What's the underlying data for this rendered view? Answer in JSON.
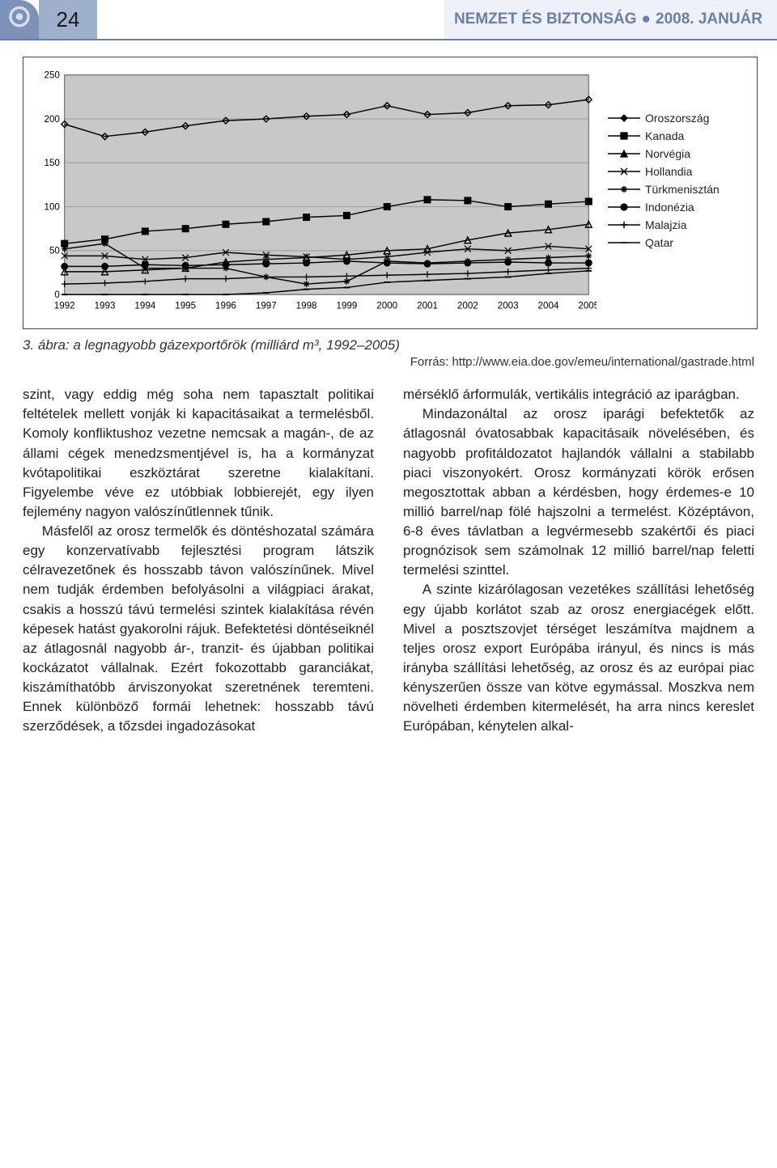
{
  "header": {
    "page_number": "24",
    "journal": "NEMZET ÉS BIZTONSÁG",
    "issue": "2008. JANUÁR",
    "bg_logo": "#7c92b8",
    "bg_page": "#9fb0cd",
    "bg_title": "#eef1f7",
    "fg_title": "#6a7fa5"
  },
  "chart": {
    "type": "line",
    "background_color": "#c8c8c8",
    "grid_color": "#9a9a9a",
    "axis_fontsize": 12,
    "ylim": [
      0,
      250
    ],
    "ytick_step": 50,
    "yticks": [
      0,
      50,
      100,
      150,
      200,
      250
    ],
    "years": [
      1992,
      1993,
      1994,
      1995,
      1996,
      1997,
      1998,
      1999,
      2000,
      2001,
      2002,
      2003,
      2004,
      2005
    ],
    "series": [
      {
        "name": "Oroszország",
        "marker": "diamond",
        "values": [
          194,
          180,
          185,
          192,
          198,
          200,
          203,
          205,
          215,
          205,
          207,
          215,
          216,
          222
        ]
      },
      {
        "name": "Kanada",
        "marker": "square",
        "values": [
          58,
          63,
          72,
          75,
          80,
          83,
          88,
          90,
          100,
          108,
          107,
          100,
          103,
          106
        ]
      },
      {
        "name": "Norvégia",
        "marker": "triangle",
        "values": [
          26,
          26,
          28,
          30,
          37,
          40,
          42,
          45,
          50,
          52,
          62,
          70,
          74,
          80
        ]
      },
      {
        "name": "Hollandia",
        "marker": "x",
        "values": [
          44,
          44,
          40,
          42,
          48,
          45,
          43,
          40,
          43,
          48,
          52,
          50,
          55,
          52
        ]
      },
      {
        "name": "Türkmenisztán",
        "marker": "star",
        "values": [
          52,
          58,
          30,
          30,
          30,
          20,
          12,
          15,
          38,
          36,
          38,
          40,
          42,
          44
        ]
      },
      {
        "name": "Indonézia",
        "marker": "circle",
        "values": [
          32,
          32,
          34,
          33,
          34,
          35,
          36,
          38,
          36,
          35,
          36,
          37,
          36,
          36
        ]
      },
      {
        "name": "Malajzia",
        "marker": "plus",
        "values": [
          12,
          13,
          15,
          18,
          18,
          20,
          20,
          21,
          22,
          23,
          24,
          26,
          28,
          30
        ]
      },
      {
        "name": "Qatar",
        "marker": "dash",
        "values": [
          0,
          0,
          0,
          0,
          0,
          2,
          6,
          8,
          14,
          16,
          18,
          20,
          24,
          27
        ]
      }
    ],
    "legend_fontsize": 14,
    "line_color": "#000000",
    "line_width": 1.5
  },
  "figure": {
    "caption": "3. ábra: a legnagyobb gázexportőrök (milliárd m³, 1992–2005)",
    "source": "Forrás: http://www.eia.doe.gov/emeu/international/gastrade.html"
  },
  "text": {
    "left": [
      "szint, vagy eddig még soha nem tapasztalt politikai feltételek mellett vonják ki kapacitásaikat a termelésből. Komoly konfliktushoz vezetne nemcsak a magán-, de az állami cégek menedzsmentjével is, ha a kormányzat kvótapolitikai eszköztárat szeretne kialakítani. Figyelembe véve ez utóbbiak lobbierejét, egy ilyen fejlemény nagyon valószínűtlennek tűnik.",
      "Másfelől az orosz termelők és döntéshozatal számára egy konzervatívabb fejlesztési program látszik célravezetőnek és hosszabb távon valószínűnek. Mivel nem tudják érdemben befolyásolni a világpiaci árakat, csakis a hosszú távú termelési szintek kialakítása révén képesek hatást gyakorolni rájuk. Befektetési döntéseiknél az átlagosnál nagyobb ár-, tranzit- és újabban politikai kockázatot vállalnak. Ezért fokozottabb garanciákat, kiszámíthatóbb árviszonyokat szeretnének teremteni. Ennek különböző formái lehetnek: hosszabb távú szerződések, a tőzsdei ingadozásokat"
    ],
    "right": [
      "mérséklő árformulák, vertikális integráció az iparágban.",
      "Mindazonáltal az orosz iparági befektetők az átlagosnál óvatosabbak kapacitásaik növelésében, és nagyobb profitáldozatot hajlandók vállalni a stabilabb piaci viszonyokért. Orosz kormányzati körök erősen megosztottak abban a kérdésben, hogy érdemes-e 10 millió barrel/nap fölé hajszolni a termelést. Középtávon, 6-8 éves távlatban a legvérmesebb szakértői és piaci prognózisok sem számolnak 12 millió barrel/nap feletti termelési szinttel.",
      "A szinte kizárólagosan vezetékes szállítási lehetőség egy újabb korlátot szab az orosz energiacégek előtt. Mivel a posztszovjet térséget leszámítva majdnem a teljes orosz export Európába irányul, és nincs is más irányba szállítási lehetőség, az orosz és az európai piac kényszerűen össze van kötve egymással. Moszkva nem növelheti érdemben kitermelését, ha arra nincs kereslet Európában, kénytelen alkal-"
    ]
  }
}
